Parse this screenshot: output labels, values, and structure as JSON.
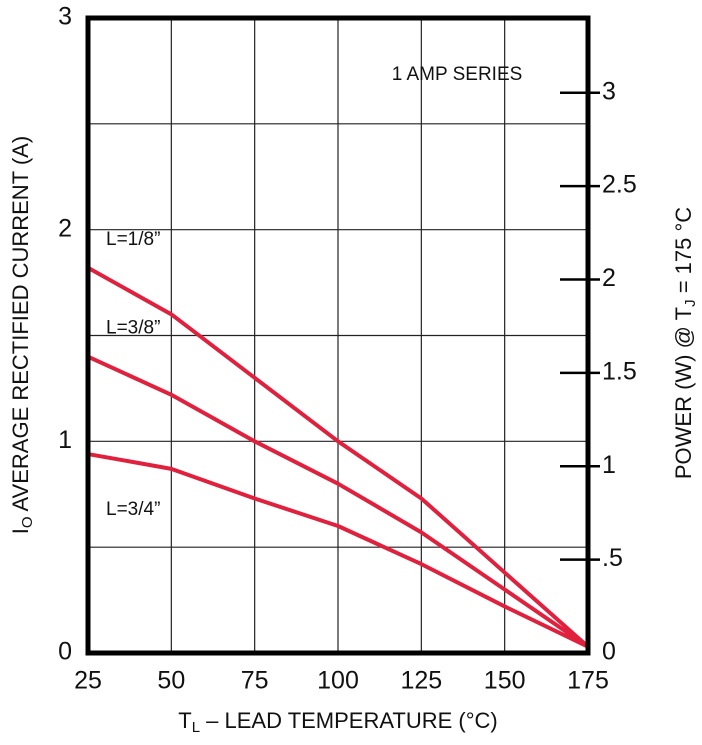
{
  "chart_data": {
    "type": "line",
    "annotation": "1 AMP SERIES",
    "xlabel": {
      "symbol": "T",
      "subscript": "L",
      "text": " – LEAD TEMPERATURE (°C)"
    },
    "ylabel": {
      "symbol": "I",
      "subscript": "O",
      "text": " AVERAGE RECTIFIED CURRENT (A)"
    },
    "y2label": {
      "symbol": "POWER (W) @ T",
      "subscript": "J",
      "text": " = 175 °C"
    },
    "x": [
      25,
      50,
      75,
      100,
      125,
      150,
      175
    ],
    "series": [
      {
        "name": "L=1/8”",
        "color": "#e0203c",
        "values": [
          1.82,
          1.6,
          1.3,
          1.0,
          0.73,
          0.38,
          0.03
        ]
      },
      {
        "name": "L=3/8”",
        "color": "#e0203c",
        "values": [
          1.4,
          1.22,
          1.0,
          0.8,
          0.57,
          0.3,
          0.03
        ]
      },
      {
        "name": "L=3/4”",
        "color": "#e0203c",
        "values": [
          0.94,
          0.87,
          0.73,
          0.6,
          0.42,
          0.22,
          0.03
        ]
      }
    ],
    "xlim": [
      25,
      175
    ],
    "xticks": [
      25,
      50,
      75,
      100,
      125,
      150,
      175
    ],
    "ylim": [
      0,
      3
    ],
    "yticks": [
      0,
      1,
      2,
      3
    ],
    "yminorticks": [
      0.5,
      1.5,
      2.5
    ],
    "y2lim": [
      0,
      3.4
    ],
    "y2ticks": [
      0,
      {
        "value": 0.5,
        "label": ".5"
      },
      1,
      1.5,
      2,
      2.5,
      3
    ],
    "grid": true
  }
}
